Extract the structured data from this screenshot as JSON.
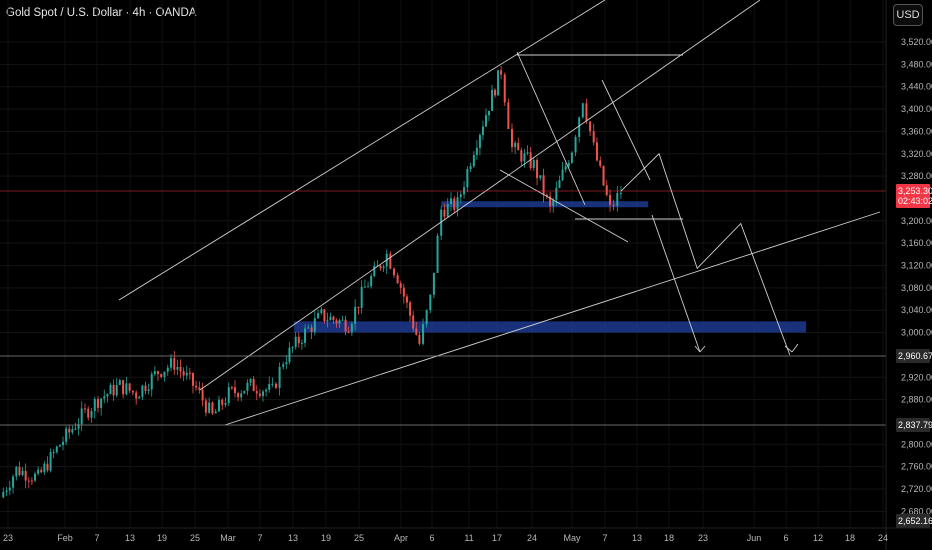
{
  "header": {
    "title": "Gold Spot / U.S. Dollar · 4h · OANDA",
    "currency": "USD"
  },
  "chart_data": {
    "type": "candlestick",
    "title": "Gold Spot / U.S. Dollar · 4h · OANDA",
    "symbol": "XAUUSD",
    "timeframe": "4h",
    "source": "OANDA",
    "ylim": [
      2640,
      3560
    ],
    "y_ticks": [
      "3,520.000",
      "3,480.000",
      "3,440.000",
      "3,400.000",
      "3,360.000",
      "3,320.000",
      "3,280.000",
      "3,200.000",
      "3,160.000",
      "3,120.000",
      "3,080.000",
      "3,040.000",
      "3,000.000",
      "2,920.000",
      "2,880.000",
      "2,800.000",
      "2,760.000",
      "2,720.000",
      "2,680.000"
    ],
    "x_ticks": [
      "23",
      "Feb",
      "7",
      "13",
      "19",
      "25",
      "Mar",
      "7",
      "13",
      "19",
      "25",
      "Apr",
      "6",
      "11",
      "17",
      "24",
      "May",
      "7",
      "13",
      "18",
      "23",
      "Jun",
      "6",
      "12",
      "18",
      "24"
    ],
    "price_labels": [
      {
        "value": "3,253.300",
        "sub": "02:43:02",
        "color": "#f23645"
      },
      {
        "value": "2,960.673",
        "color": "#2a2a2a"
      },
      {
        "value": "2,837.793",
        "color": "#2a2a2a"
      },
      {
        "value": "2,652.164",
        "color": "#2a2a2a"
      }
    ],
    "close_series": [
      {
        "x": "Jan 20",
        "c": 2705
      },
      {
        "x": "Jan 23",
        "c": 2755
      },
      {
        "x": "Jan 27",
        "c": 2740
      },
      {
        "x": "Jan 31",
        "c": 2800
      },
      {
        "x": "Feb 4",
        "c": 2850
      },
      {
        "x": "Feb 7",
        "c": 2880
      },
      {
        "x": "Feb 11",
        "c": 2905
      },
      {
        "x": "Feb 14",
        "c": 2890
      },
      {
        "x": "Feb 18",
        "c": 2930
      },
      {
        "x": "Feb 21",
        "c": 2945
      },
      {
        "x": "Feb 25",
        "c": 2900
      },
      {
        "x": "Feb 28",
        "c": 2850
      },
      {
        "x": "Mar 3",
        "c": 2890
      },
      {
        "x": "Mar 7",
        "c": 2905
      },
      {
        "x": "Mar 11",
        "c": 2895
      },
      {
        "x": "Mar 13",
        "c": 2950
      },
      {
        "x": "Mar 17",
        "c": 3000
      },
      {
        "x": "Mar 20",
        "c": 3030
      },
      {
        "x": "Mar 25",
        "c": 3015
      },
      {
        "x": "Mar 28",
        "c": 3080
      },
      {
        "x": "Apr 1",
        "c": 3140
      },
      {
        "x": "Apr 3",
        "c": 3100
      },
      {
        "x": "Apr 7",
        "c": 2980
      },
      {
        "x": "Apr 9",
        "c": 3060
      },
      {
        "x": "Apr 11",
        "c": 3220
      },
      {
        "x": "Apr 14",
        "c": 3230
      },
      {
        "x": "Apr 17",
        "c": 3330
      },
      {
        "x": "Apr 22",
        "c": 3470
      },
      {
        "x": "Apr 24",
        "c": 3330
      },
      {
        "x": "Apr 28",
        "c": 3300
      },
      {
        "x": "May 1",
        "c": 3220
      },
      {
        "x": "May 5",
        "c": 3330
      },
      {
        "x": "May 7",
        "c": 3420
      },
      {
        "x": "May 9",
        "c": 3330
      },
      {
        "x": "May 12",
        "c": 3220
      },
      {
        "x": "May 14",
        "c": 3253
      }
    ],
    "zones": [
      {
        "from": 3000,
        "to": 3020,
        "start": "Mar 15",
        "end": "Jun 17",
        "color": "#1c3a8f"
      },
      {
        "from": 3225,
        "to": 3235,
        "start": "Apr 11",
        "end": "May 19",
        "color": "#1c3a8f"
      }
    ],
    "projection": [
      {
        "x": "May 14",
        "y": 3253
      },
      {
        "x": "May 21",
        "y": 3320
      },
      {
        "x": "May 28",
        "y": 3115
      },
      {
        "x": "Jun 5",
        "y": 3195
      },
      {
        "x": "Jun 14",
        "y": 2960
      }
    ]
  }
}
